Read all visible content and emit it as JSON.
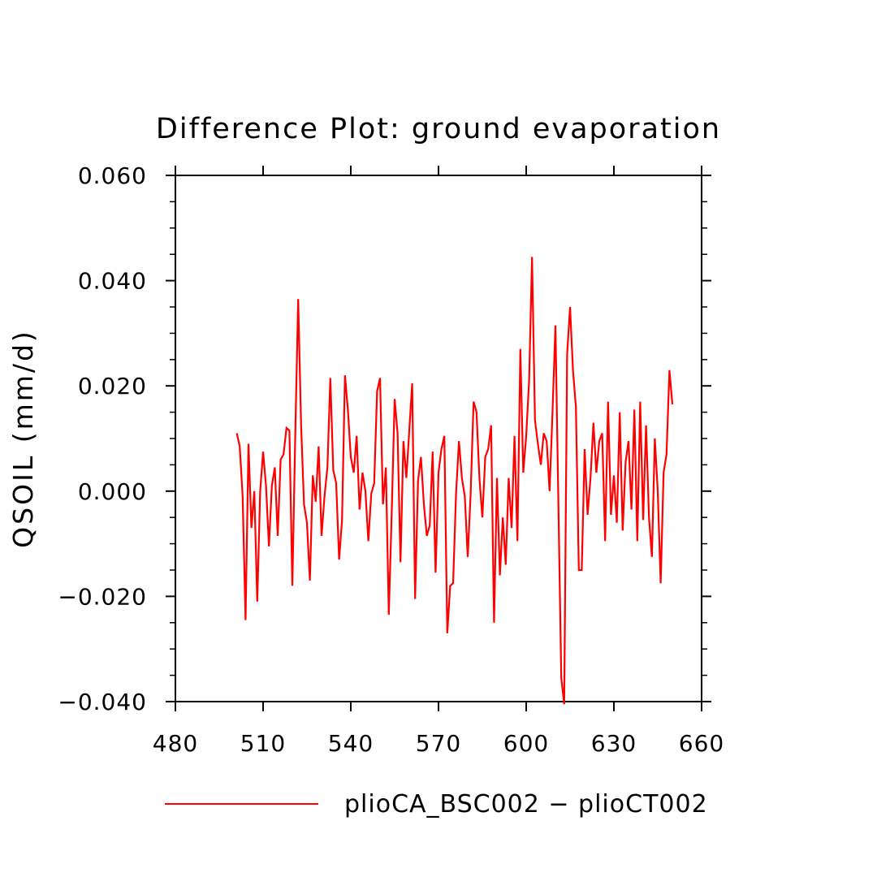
{
  "chart_data": {
    "type": "line",
    "title": "Difference Plot: ground evaporation",
    "xlabel": "",
    "ylabel": "QSOIL  (mm/d)",
    "xlim": [
      480,
      660
    ],
    "ylim": [
      -0.04,
      0.06
    ],
    "xticks": [
      480,
      510,
      540,
      570,
      600,
      630,
      660
    ],
    "xtick_labels": [
      "480",
      "510",
      "540",
      "570",
      "600",
      "630",
      "660"
    ],
    "yticks": [
      -0.04,
      -0.02,
      0.0,
      0.02,
      0.04,
      0.06
    ],
    "ytick_labels": [
      "−0.040",
      "−0.020",
      "0.000",
      "0.020",
      "0.040",
      "0.060"
    ],
    "grid": false,
    "legend_position": "bottom",
    "colors": {
      "series": "#ff0000",
      "axes": "#000000"
    },
    "series": [
      {
        "name": "plioCA_BSC002 − plioCT002",
        "x": [
          501,
          502,
          503,
          504,
          505,
          506,
          507,
          508,
          509,
          510,
          511,
          512,
          513,
          514,
          515,
          516,
          517,
          518,
          519,
          520,
          521,
          522,
          523,
          524,
          525,
          526,
          527,
          528,
          529,
          530,
          531,
          532,
          533,
          534,
          535,
          536,
          537,
          538,
          539,
          540,
          541,
          542,
          543,
          544,
          545,
          546,
          547,
          548,
          549,
          550,
          551,
          552,
          553,
          554,
          555,
          556,
          557,
          558,
          559,
          560,
          561,
          562,
          563,
          564,
          565,
          566,
          567,
          568,
          569,
          570,
          571,
          572,
          573,
          574,
          575,
          576,
          577,
          578,
          579,
          580,
          581,
          582,
          583,
          584,
          585,
          586,
          587,
          588,
          589,
          590,
          591,
          592,
          593,
          594,
          595,
          596,
          597,
          598,
          599,
          600,
          601,
          602,
          603,
          604,
          605,
          606,
          607,
          608,
          609,
          610,
          611,
          612,
          613,
          614,
          615,
          616,
          617,
          618,
          619,
          620,
          621,
          622,
          623,
          624,
          625,
          626,
          627,
          628,
          629,
          630,
          631,
          632,
          633,
          634,
          635,
          636,
          637,
          638,
          639,
          640,
          641,
          642,
          643,
          644,
          645,
          646,
          647,
          648,
          649,
          650
        ],
        "y": [
          0.011,
          0.0085,
          -0.001,
          -0.0245,
          0.009,
          -0.007,
          0.0,
          -0.021,
          0.0,
          0.0075,
          0.001,
          -0.0105,
          0.001,
          0.0045,
          -0.0085,
          0.006,
          0.007,
          0.012,
          0.0115,
          -0.018,
          0.0105,
          0.0365,
          0.0125,
          -0.0025,
          -0.006,
          -0.017,
          0.003,
          -0.002,
          0.0085,
          -0.0085,
          -0.001,
          0.0045,
          0.0215,
          0.004,
          0.0015,
          -0.013,
          -0.0055,
          0.022,
          0.0155,
          0.0065,
          0.0035,
          0.0105,
          -0.0035,
          0.0035,
          0.0,
          -0.0095,
          -0.0005,
          0.0015,
          0.019,
          0.0215,
          -0.0025,
          0.0045,
          -0.0235,
          -0.004,
          0.0175,
          0.011,
          -0.0135,
          0.0095,
          0.0025,
          0.0115,
          0.0205,
          -0.0205,
          0.002,
          0.0065,
          -0.0025,
          -0.0085,
          -0.0065,
          0.0075,
          -0.0155,
          0.0035,
          0.008,
          0.0105,
          -0.027,
          -0.018,
          -0.0175,
          -0.0005,
          0.0095,
          0.0025,
          -0.001,
          -0.0125,
          -0.0005,
          0.017,
          0.015,
          0.0025,
          -0.005,
          0.0065,
          0.008,
          0.0125,
          -0.025,
          0.0025,
          -0.016,
          -0.005,
          -0.014,
          0.0025,
          -0.007,
          0.0105,
          -0.0095,
          0.027,
          0.0035,
          0.0105,
          0.021,
          0.0445,
          0.0135,
          0.009,
          0.005,
          0.011,
          0.0095,
          0.0,
          0.015,
          0.0315,
          -0.002,
          -0.0355,
          -0.0405,
          0.026,
          0.035,
          0.023,
          0.016,
          -0.015,
          -0.015,
          0.008,
          -0.0045,
          0.0025,
          0.013,
          0.0035,
          0.0095,
          0.011,
          -0.0095,
          0.017,
          -0.0045,
          0.003,
          -0.006,
          0.015,
          -0.0075,
          0.0055,
          0.0095,
          -0.0035,
          0.0155,
          -0.0095,
          0.017,
          -0.0055,
          0.0125,
          -0.005,
          -0.0125,
          0.01,
          0.0,
          -0.0175,
          0.0035,
          0.007,
          0.023,
          0.0165
        ]
      }
    ]
  }
}
